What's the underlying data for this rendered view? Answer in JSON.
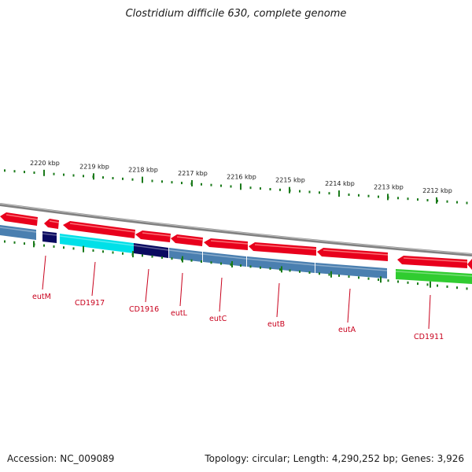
{
  "title": "Clostridium difficile 630, complete genome",
  "footer": {
    "accession": "Accession: NC_009089",
    "summary": "Topology: circular; Length: 4,290,252 bp; Genes: 3,926"
  },
  "colors": {
    "forward_gene": "#e8001c",
    "reverse_gene": "#e8001c",
    "cog_steel": "#4a7fb0",
    "cog_cyan": "#00e0e8",
    "cog_navy": "#0a0a60",
    "cog_green": "#30cc30",
    "label": "#c8001c",
    "tick_green": "#1a7a1a",
    "backbone": "#808080"
  },
  "kbp_labels": [
    "2220 kbp",
    "2219 kbp",
    "2218 kbp",
    "2217 kbp",
    "2216 kbp",
    "2215 kbp",
    "2214 kbp",
    "2213 kbp",
    "2212 kbp"
  ],
  "genes": [
    "eutM",
    "CD1917",
    "CD1916",
    "eutL",
    "eutC",
    "eutB",
    "eutA",
    "CD1911"
  ]
}
